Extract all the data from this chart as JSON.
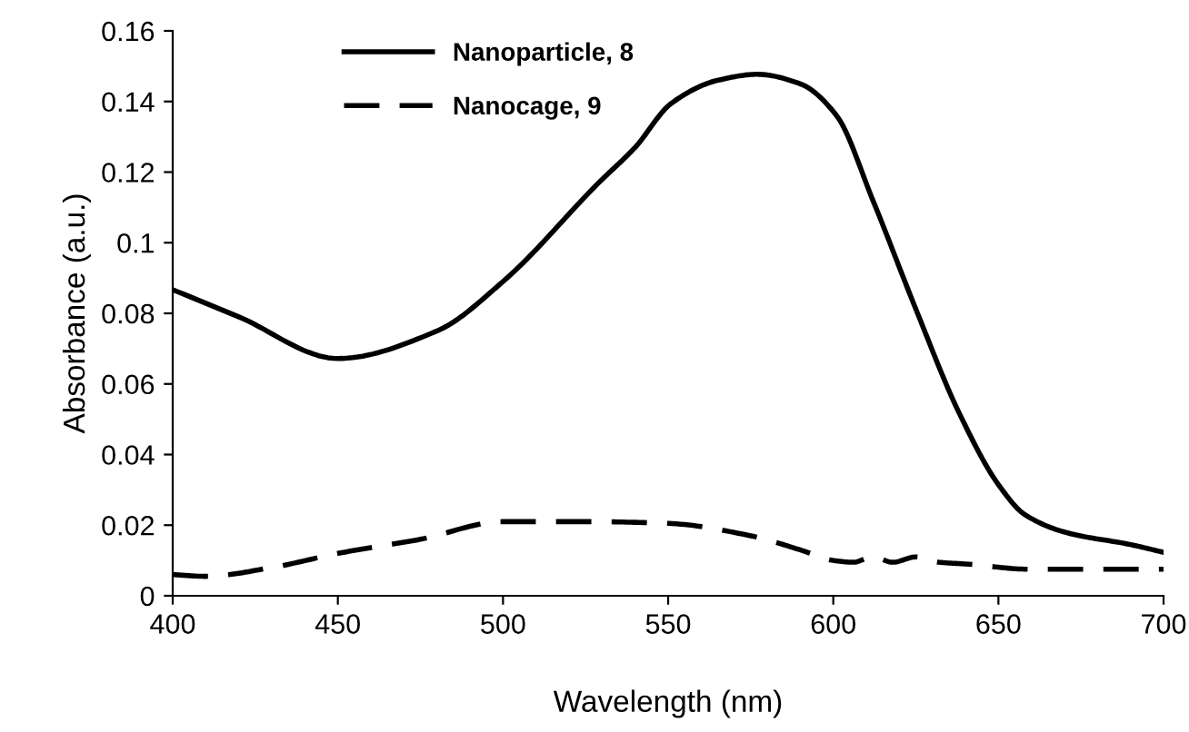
{
  "chart_data": {
    "type": "line",
    "xlabel": "Wavelength (nm)",
    "ylabel": "Absorbance (a.u.)",
    "xlim": [
      400,
      700
    ],
    "xticks": [
      400,
      450,
      500,
      550,
      600,
      650,
      700
    ],
    "ylim": [
      0,
      0.16
    ],
    "yticks": [
      0,
      0.02,
      0.04,
      0.06,
      0.08,
      0.1,
      0.12,
      0.14,
      0.16
    ],
    "grid": false,
    "legend": "top left",
    "marker": "none",
    "series": [
      {
        "name": "Nanoparticle, 8",
        "color": "#000000",
        "line_style": "solid",
        "x": [
          400,
          420,
          450,
          480,
          500,
          529,
          540,
          551,
          565,
          577,
          590,
          601,
          612,
          625,
          638,
          650,
          658,
          671,
          690,
          700
        ],
        "values": [
          0.0867,
          0.079,
          0.0672,
          0.075,
          0.089,
          0.117,
          0.127,
          0.1395,
          0.146,
          0.1477,
          0.145,
          0.136,
          0.112,
          0.0812,
          0.052,
          0.0315,
          0.023,
          0.0178,
          0.0145,
          0.0123
        ]
      },
      {
        "name": "Nanocage, 9",
        "color": "#000000",
        "line_style": "dashed",
        "x": [
          400,
          410,
          430,
          450,
          475,
          500,
          525,
          550,
          575,
          590,
          600,
          606,
          612,
          618,
          625,
          632,
          640,
          660,
          680,
          700
        ],
        "values": [
          0.006,
          0.0055,
          0.008,
          0.012,
          0.016,
          0.021,
          0.021,
          0.0205,
          0.017,
          0.013,
          0.01,
          0.0095,
          0.011,
          0.0095,
          0.011,
          0.0095,
          0.009,
          0.0075,
          0.0075,
          0.0075
        ]
      }
    ]
  }
}
